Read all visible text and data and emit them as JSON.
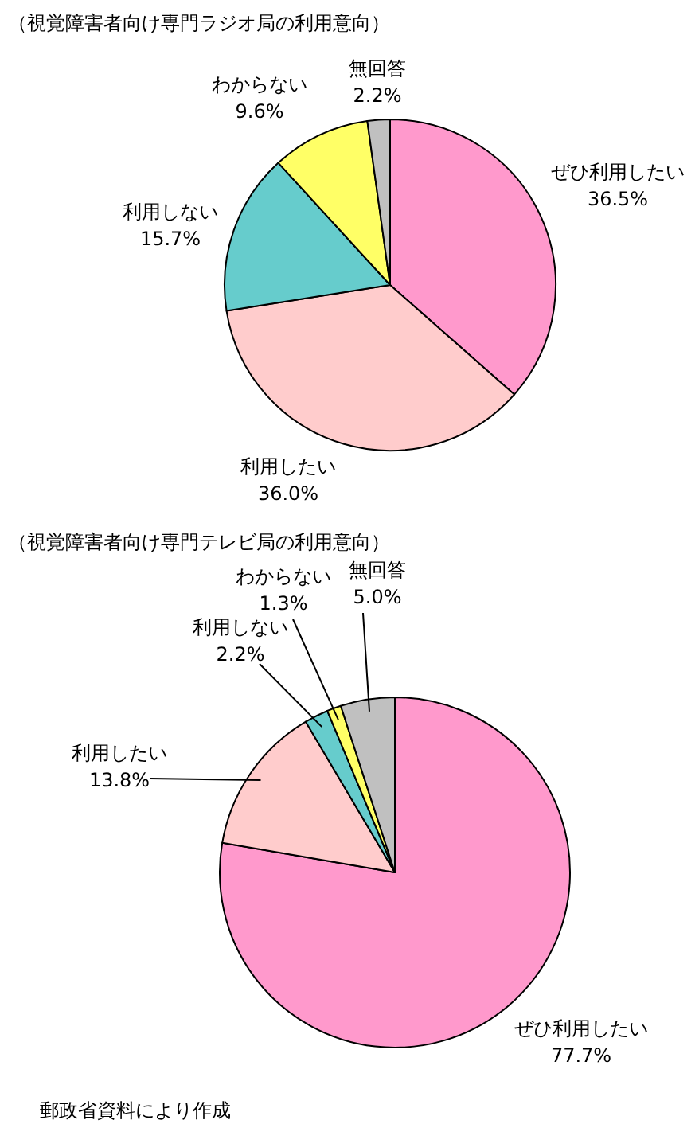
{
  "chart_data": [
    {
      "type": "pie",
      "title": "（視覚障害者向け専門ラジオ局の利用意向）",
      "categories": [
        "ぜひ利用したい",
        "利用したい",
        "利用しない",
        "わからない",
        "無回答"
      ],
      "values": [
        36.5,
        36.0,
        15.7,
        9.6,
        2.2
      ],
      "value_labels": [
        "36.5%",
        "36.0%",
        "15.7%",
        "9.6%",
        "2.2%"
      ],
      "colors": [
        "#ff99cc",
        "#ffcccc",
        "#66cccc",
        "#ffff66",
        "#c0c0c0"
      ]
    },
    {
      "type": "pie",
      "title": "（視覚障害者向け専門テレビ局の利用意向）",
      "categories": [
        "ぜひ利用したい",
        "利用したい",
        "利用しない",
        "わからない",
        "無回答"
      ],
      "values": [
        77.7,
        13.8,
        2.2,
        1.3,
        5.0
      ],
      "value_labels": [
        "77.7%",
        "13.8%",
        "2.2%",
        "1.3%",
        "5.0%"
      ],
      "colors": [
        "#ff99cc",
        "#ffcccc",
        "#66cccc",
        "#ffff66",
        "#c0c0c0"
      ],
      "annotations": [
        "郵政省資料により作成"
      ]
    }
  ]
}
